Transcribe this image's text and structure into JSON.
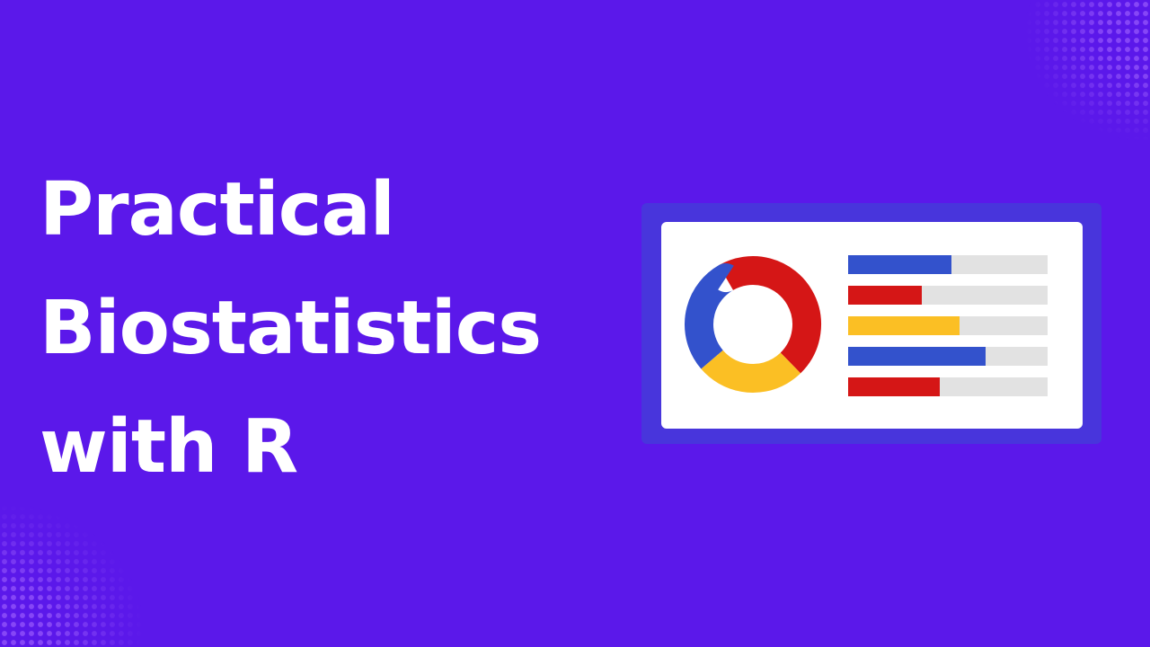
{
  "title": {
    "line1": "Practical",
    "line2": "Biostatistics",
    "line3": "with R"
  },
  "colors": {
    "background": "#5b18ea",
    "panel": "#4835dc",
    "card": "#ffffff",
    "blue": "#3352cc",
    "red": "#d51616",
    "yellow": "#fbbf24",
    "track": "#e2e2e2"
  },
  "illustration": {
    "icon": "dashboard-chart-icon",
    "donut": {
      "segments": [
        {
          "color": "red",
          "share": 0.46
        },
        {
          "color": "yellow",
          "share": 0.26
        },
        {
          "color": "blue",
          "share": 0.28
        }
      ]
    },
    "bars": [
      {
        "color": "blue",
        "fill": 0.52
      },
      {
        "color": "red",
        "fill": 0.37
      },
      {
        "color": "yellow",
        "fill": 0.56
      },
      {
        "color": "blue",
        "fill": 0.69
      },
      {
        "color": "red",
        "fill": 0.46
      }
    ]
  }
}
